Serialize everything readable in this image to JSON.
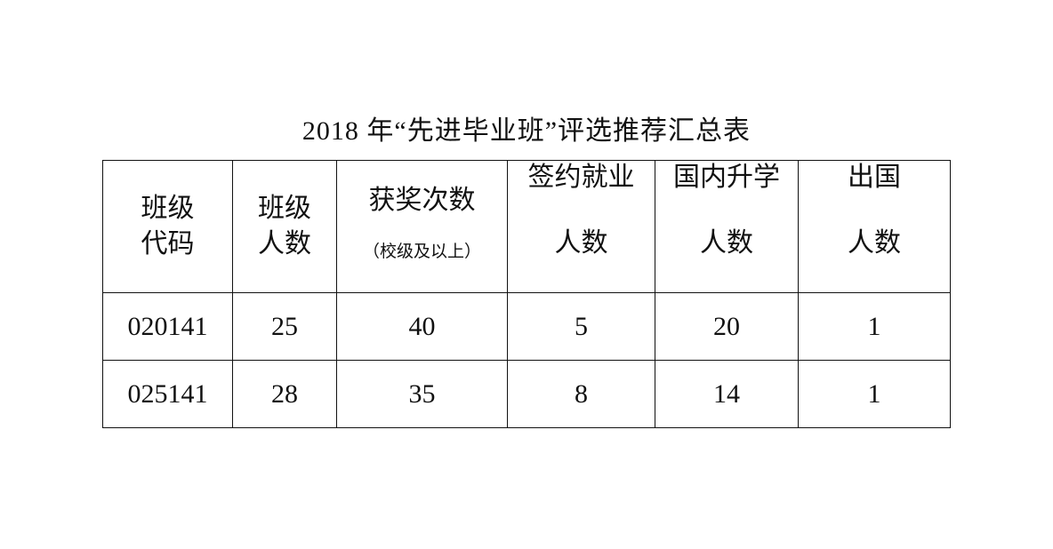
{
  "title": "2018 年“先进毕业班”评选推荐汇总表",
  "table": {
    "headers": [
      {
        "lines": [
          "班级",
          "代码"
        ]
      },
      {
        "lines": [
          "班级",
          "人数"
        ]
      },
      {
        "lines": [
          "获奖次数"
        ],
        "sub": "（校级及以上）"
      },
      {
        "lines": [
          "签约就业",
          "人数"
        ]
      },
      {
        "lines": [
          "国内升学",
          "人数"
        ]
      },
      {
        "lines": [
          "出国",
          "人数"
        ]
      }
    ],
    "rows": [
      [
        "020141",
        "25",
        "40",
        "5",
        "20",
        "1"
      ],
      [
        "025141",
        "28",
        "35",
        "8",
        "14",
        "1"
      ]
    ]
  }
}
